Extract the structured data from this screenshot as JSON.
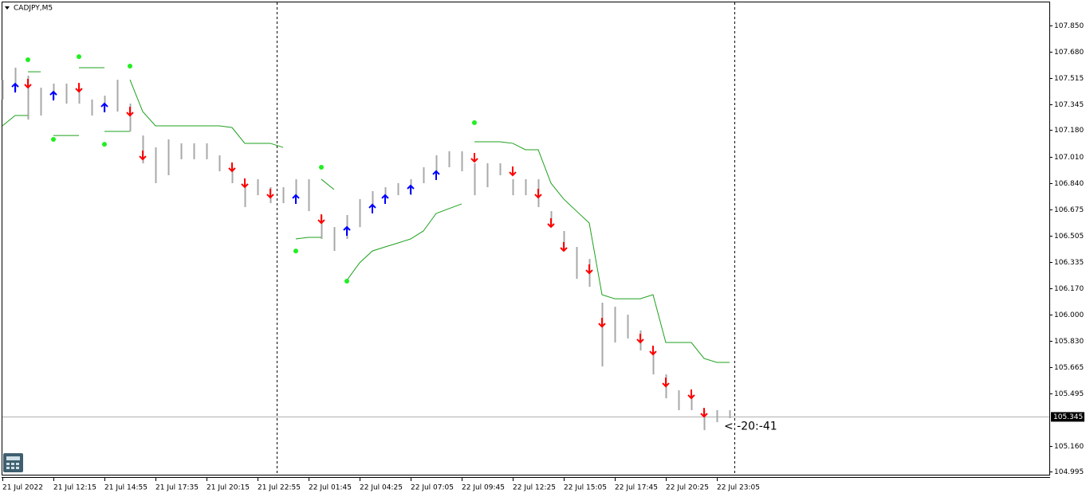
{
  "chart_data": {
    "type": "ohlc",
    "title": "CADJPY,M5",
    "annotation": "< -20:-41",
    "categories": [
      "21 Jul 2022",
      null,
      null,
      null,
      "21 Jul 12:15",
      null,
      null,
      null,
      "21 Jul 14:55",
      null,
      null,
      null,
      "21 Jul 17:35",
      null,
      null,
      null,
      "21 Jul 20:15",
      null,
      null,
      null,
      "21 Jul 22:55",
      null,
      null,
      null,
      "22 Jul 01:45",
      null,
      null,
      null,
      "22 Jul 04:25",
      null,
      null,
      null,
      "22 Jul 07:05",
      null,
      null,
      null,
      "22 Jul 09:45",
      null,
      null,
      null,
      "22 Jul 12:25",
      null,
      null,
      null,
      "22 Jul 15:05",
      null,
      null,
      null,
      "22 Jul 17:45",
      null,
      null,
      null,
      "22 Jul 20:25",
      null,
      null,
      null,
      "22 Jul 23:05",
      null
    ],
    "high": [
      107.503,
      107.58,
      107.529,
      107.452,
      107.478,
      107.478,
      107.452,
      107.376,
      107.401,
      107.503,
      107.35,
      107.146,
      107.07,
      107.121,
      107.096,
      107.096,
      107.096,
      107.019,
      106.943,
      106.841,
      106.866,
      106.815,
      106.815,
      106.866,
      106.866,
      106.637,
      106.56,
      106.637,
      106.739,
      106.79,
      106.815,
      106.841,
      106.866,
      106.943,
      107.019,
      107.045,
      107.045,
      106.968,
      106.968,
      106.968,
      106.866,
      106.866,
      106.866,
      106.662,
      106.535,
      106.433,
      106.356,
      106.076,
      106.05,
      105.999,
      105.898,
      105.77,
      105.617,
      105.515,
      105.49,
      105.388,
      105.388,
      105.388
    ],
    "low": [
      107.376,
      107.427,
      107.248,
      107.274,
      107.376,
      107.35,
      107.35,
      107.274,
      107.299,
      107.299,
      107.172,
      106.968,
      106.841,
      106.892,
      106.994,
      106.994,
      106.994,
      106.917,
      106.841,
      106.688,
      106.764,
      106.713,
      106.713,
      106.764,
      106.662,
      106.484,
      106.407,
      106.484,
      106.56,
      106.688,
      106.739,
      106.764,
      106.764,
      106.841,
      106.917,
      106.943,
      106.917,
      106.764,
      106.815,
      106.892,
      106.764,
      106.764,
      106.688,
      106.56,
      106.407,
      106.229,
      106.178,
      105.668,
      105.821,
      105.847,
      105.77,
      105.617,
      105.464,
      105.388,
      105.388,
      105.26,
      105.311,
      105.337
    ],
    "upper_stop": [
      null,
      null,
      107.554,
      107.554,
      null,
      null,
      107.58,
      107.58,
      107.58,
      null,
      107.503,
      107.299,
      107.208,
      107.208,
      107.208,
      107.208,
      107.208,
      107.208,
      107.197,
      107.096,
      107.096,
      107.096,
      107.07,
      null,
      null,
      106.866,
      106.8,
      null,
      null,
      null,
      null,
      null,
      null,
      null,
      null,
      null,
      null,
      107.106,
      107.106,
      107.106,
      107.096,
      107.055,
      107.055,
      106.841,
      106.739,
      106.662,
      106.586,
      106.127,
      106.101,
      106.101,
      106.101,
      106.127,
      105.821,
      105.821,
      105.821,
      105.719,
      105.694,
      105.694
    ],
    "lower_stop": [
      107.208,
      107.274,
      107.274,
      null,
      107.146,
      107.146,
      107.146,
      null,
      107.172,
      107.172,
      107.172,
      null,
      null,
      null,
      null,
      null,
      null,
      null,
      null,
      null,
      null,
      null,
      null,
      106.484,
      106.494,
      106.494,
      null,
      106.219,
      106.331,
      106.407,
      106.433,
      106.458,
      106.484,
      106.535,
      106.647,
      106.678,
      106.708,
      null,
      null,
      null,
      null,
      null,
      null,
      null,
      null,
      null,
      null,
      null,
      null,
      null,
      null,
      null,
      null,
      null,
      null,
      null,
      null,
      null
    ],
    "sell_arrows": [
      null,
      null,
      107.478,
      null,
      null,
      null,
      107.452,
      null,
      null,
      null,
      107.299,
      107.019,
      null,
      null,
      null,
      null,
      null,
      null,
      106.943,
      106.841,
      null,
      106.774,
      null,
      null,
      null,
      106.611,
      null,
      null,
      null,
      null,
      null,
      null,
      null,
      null,
      null,
      null,
      null,
      107.004,
      null,
      null,
      106.917,
      null,
      106.774,
      106.586,
      106.433,
      null,
      106.29,
      105.948,
      null,
      null,
      105.847,
      105.77,
      105.566,
      null,
      105.49,
      105.372,
      null,
      null
    ],
    "buy_arrows": [
      null,
      107.452,
      null,
      null,
      107.401,
      null,
      null,
      null,
      107.325,
      null,
      null,
      null,
      null,
      null,
      null,
      null,
      null,
      null,
      null,
      null,
      null,
      null,
      null,
      106.739,
      null,
      null,
      null,
      106.535,
      null,
      106.678,
      106.739,
      null,
      106.8,
      null,
      106.892,
      null,
      null,
      null,
      null,
      null,
      null,
      null,
      null,
      null,
      null,
      null,
      null,
      null,
      null,
      null,
      null,
      null,
      null,
      null,
      null,
      null,
      null,
      null
    ],
    "dots": [
      null,
      null,
      107.631,
      null,
      107.121,
      null,
      107.651,
      null,
      107.09,
      null,
      107.59,
      null,
      null,
      null,
      null,
      null,
      null,
      null,
      null,
      null,
      null,
      null,
      null,
      106.407,
      null,
      106.943,
      null,
      106.214,
      null,
      null,
      null,
      null,
      null,
      null,
      null,
      null,
      null,
      107.228,
      null,
      null,
      null,
      null,
      null,
      null,
      null,
      null,
      null,
      null,
      null,
      null,
      null,
      null,
      null,
      null,
      null,
      null,
      null,
      null
    ],
    "current_price": 105.345,
    "ylim": [
      104.975,
      107.998
    ],
    "yticks": [
      {
        "value": 107.85,
        "label": "107.850"
      },
      {
        "value": 107.68,
        "label": "107.680"
      },
      107.515,
      107.345,
      {
        "value": 107.18,
        "label": "107.180"
      },
      {
        "value": 107.01,
        "label": "107.010"
      },
      {
        "value": 106.84,
        "label": "106.840"
      },
      106.675,
      106.505,
      106.335,
      {
        "value": 106.17,
        "label": "106.170"
      },
      {
        "value": 106.0,
        "label": "106.000"
      },
      {
        "value": 105.83,
        "label": "105.830"
      },
      105.665,
      105.495,
      {
        "value": 105.16,
        "label": "105.160"
      },
      104.995
    ],
    "grid": false,
    "bar_color": "#a8a8a8",
    "stop_color": "#1ea01e",
    "dot_color": "#22ee22",
    "sell_color": "#ff0000",
    "buy_color": "#0000ff"
  }
}
